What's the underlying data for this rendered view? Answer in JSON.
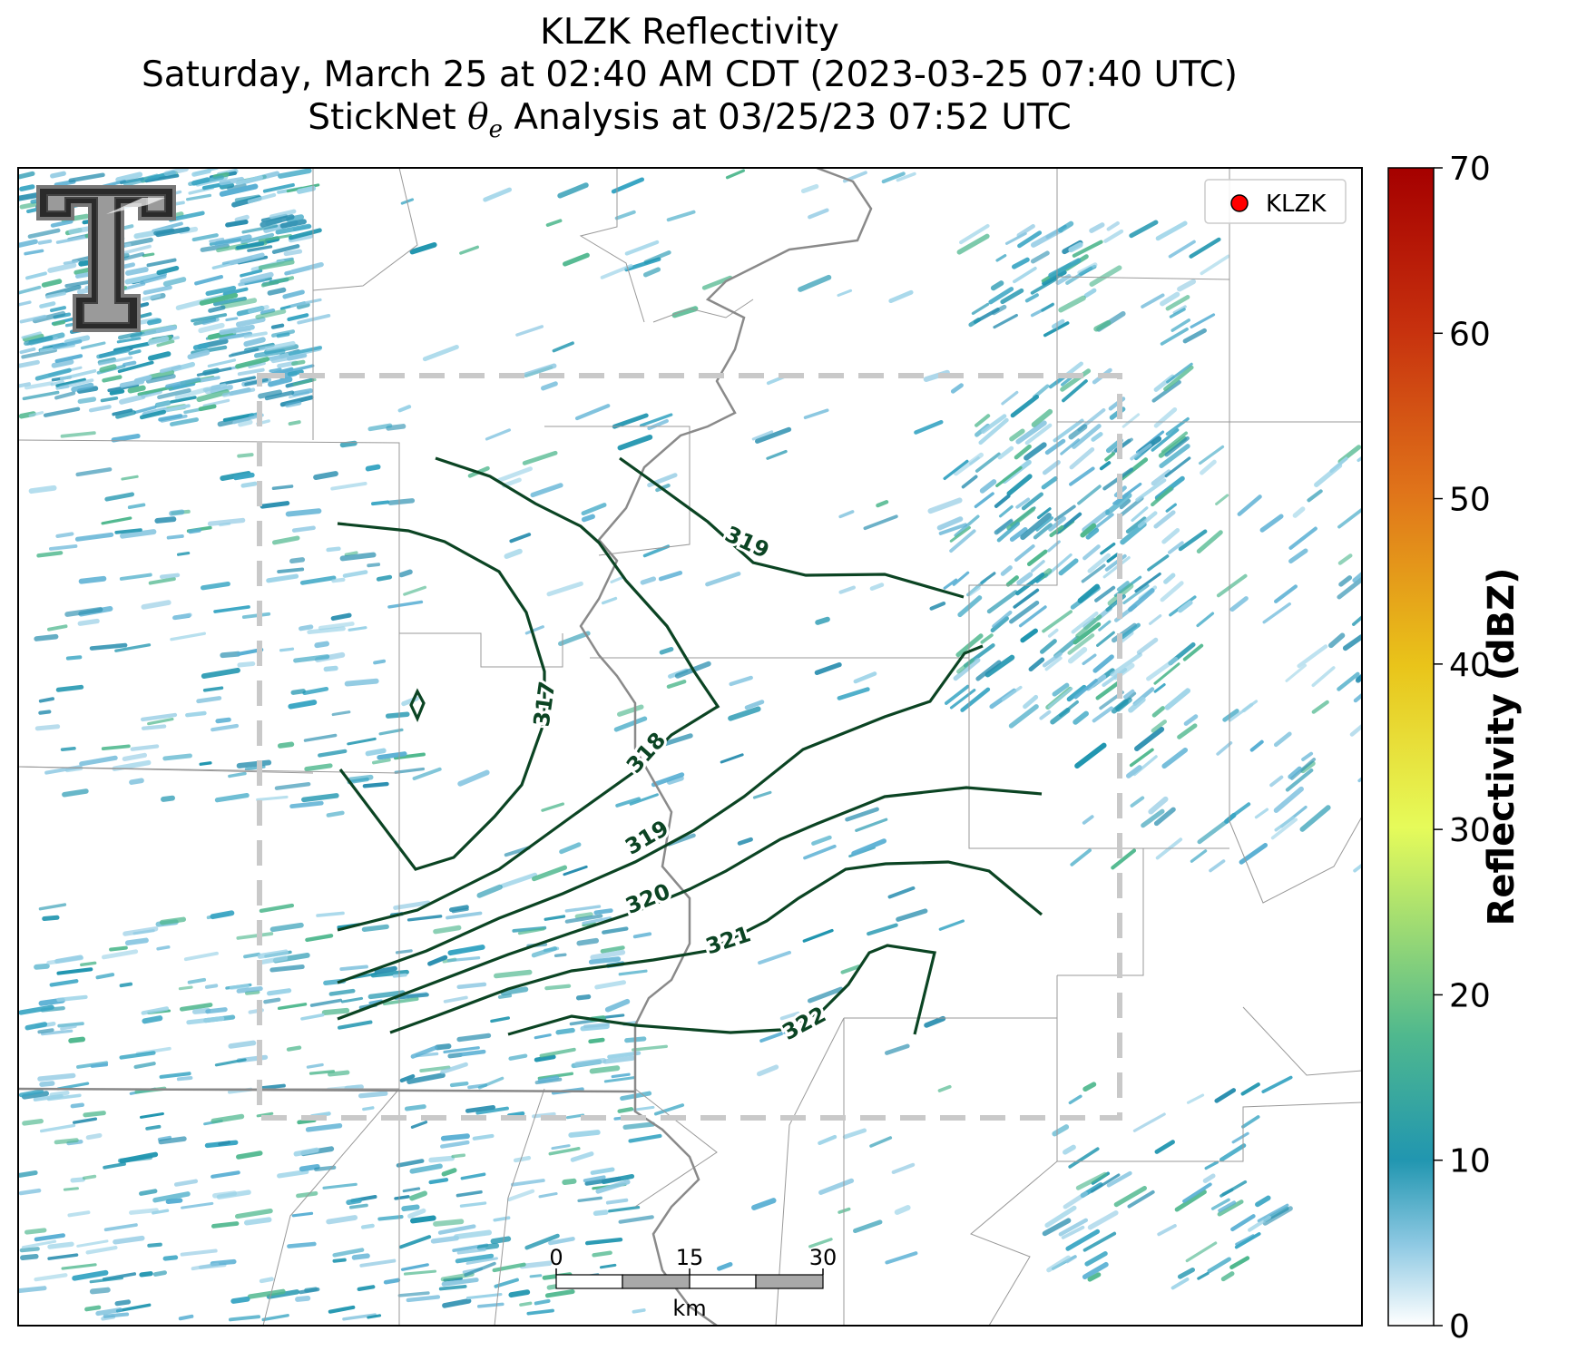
{
  "title": {
    "line1": "KLZK Reflectivity",
    "line2": "Saturday, March 25 at 02:40 AM CDT (2023-03-25 07:40 UTC)",
    "line3_prefix": "StickNet ",
    "line3_theta": "θ",
    "line3_sub": "e",
    "line3_suffix": " Analysis at 03/25/23 07:52 UTC"
  },
  "legend": {
    "marker_label": "KLZK",
    "marker_color": "#ff0000"
  },
  "colorbar": {
    "label": "Reflectivity (dBZ)",
    "ticks": [
      "0",
      "10",
      "20",
      "30",
      "40",
      "50",
      "60",
      "70"
    ],
    "min": 0,
    "max": 70,
    "colors": [
      "#ffffff",
      "#8ec9e3",
      "#2196b0",
      "#4fb88e",
      "#e6fb5a",
      "#e9c41a",
      "#e0741a",
      "#c7310e",
      "#a50000"
    ]
  },
  "contours": {
    "color": "#0b4423",
    "labels": [
      "317",
      "318",
      "319",
      "319",
      "320",
      "321",
      "322"
    ]
  },
  "scale_bar": {
    "ticks": [
      "0",
      "15",
      "30"
    ],
    "unit": "km"
  },
  "logo": {
    "description": "Texas Tech double-T logo"
  }
}
